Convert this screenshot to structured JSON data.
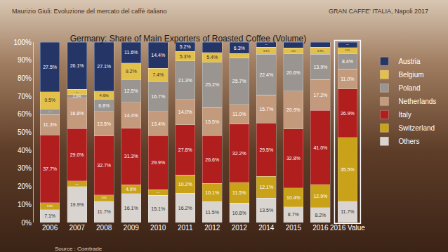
{
  "chart_data": {
    "type": "bar",
    "stacked": true,
    "title": "Germany: Share of Main Exporters of Roasted Coffee (Volume)",
    "header_left": "Maurizio Giuli: Evoluzione del mercato del caffè italiano",
    "header_right": "GRAN CAFFE' ITALIA, Napoli 2017",
    "source": "Source : Comtrade",
    "categories": [
      "2006",
      "2007",
      "2008",
      "2009",
      "2010",
      "2011",
      "2012",
      "2012",
      "2014",
      "2015",
      "2016",
      "2016 Value"
    ],
    "ylim": [
      0,
      100
    ],
    "yticks": [
      {
        "value": 0,
        "label": "0%"
      },
      {
        "value": 10,
        "label": "10%"
      },
      {
        "value": 20,
        "label": "20%"
      },
      {
        "value": 30,
        "label": "30%"
      },
      {
        "value": 40,
        "label": "40%"
      },
      {
        "value": 50,
        "label": "50%"
      },
      {
        "value": 60,
        "label": "60%"
      },
      {
        "value": 70,
        "label": "70%"
      },
      {
        "value": 80,
        "label": "80%"
      },
      {
        "value": 90,
        "label": "90%"
      },
      {
        "value": 100,
        "label": "100%"
      }
    ],
    "grid": false,
    "legend": "right",
    "data_labels": true,
    "series": [
      {
        "name": "Others",
        "color": "#d9d4cf",
        "values": [
          7.1,
          19.9,
          11.7,
          16.1,
          15.1,
          16.2,
          11.5,
          10.8,
          13.5,
          8.7,
          8.2,
          11.7
        ],
        "value_labels": [
          "7.1%",
          "19.9%",
          "11.7%",
          "16.1%",
          "15.1%",
          "16.2%",
          "11.5%",
          "10.8%",
          "13.5%",
          "8.7%",
          "8.2%",
          "11.7%"
        ]
      },
      {
        "name": "Switzerland",
        "color": "#c9a21a",
        "values": [
          3.8,
          3.2,
          3.6,
          4.9,
          3.1,
          10.2,
          10.1,
          11.5,
          12.1,
          10.4,
          12.9,
          35.5
        ],
        "value_labels": [
          "3.8%",
          "3.2%",
          "3.6%",
          "4.9%",
          "3.1%",
          "10.2%",
          "10.1%",
          "11.5%",
          "12.1%",
          "10.4%",
          "12.9%",
          "35.5%"
        ]
      },
      {
        "name": "Italy",
        "color": "#b01e1e",
        "values": [
          37.7,
          29.0,
          32.7,
          31.3,
          29.9,
          27.8,
          26.6,
          32.2,
          29.5,
          32.8,
          41.0,
          26.9
        ],
        "value_labels": [
          "37.7%",
          "29.0%",
          "32.7%",
          "31.3%",
          "29.9%",
          "27.8%",
          "26.6%",
          "32.2%",
          "29.5%",
          "32.8%",
          "41.0%",
          "26.9%"
        ]
      },
      {
        "name": "Netherlands",
        "color": "#c49a7c",
        "values": [
          11.3,
          16.8,
          13.5,
          14.4,
          13.4,
          14.0,
          15.5,
          11.0,
          15.7,
          20.9,
          17.2,
          11.0
        ],
        "value_labels": [
          "11.3%",
          "16.8%",
          "13.5%",
          "14.4%",
          "13.4%",
          "14.0%",
          "15.5%",
          "11.0%",
          "15.7%",
          "20.9%",
          "17.2%",
          "11.0%"
        ]
      },
      {
        "name": "Poland",
        "color": "#9a9590",
        "values": [
          3.1,
          2.0,
          6.8,
          12.5,
          16.7,
          21.3,
          25.2,
          25.7,
          22.4,
          20.6,
          13.9,
          8.4
        ],
        "value_labels": [
          "3.1%",
          "2.0%",
          "6.8%",
          "12.5%",
          "16.7%",
          "21.3%",
          "25.2%",
          "25.7%",
          "22.4%",
          "20.6%",
          "13.9%",
          "8.4%"
        ]
      },
      {
        "name": "Belgium",
        "color": "#e3c04a",
        "values": [
          9.5,
          3.0,
          4.6,
          9.2,
          7.4,
          5.3,
          5.4,
          2.5,
          3.9,
          3.4,
          3.9,
          3.5
        ],
        "value_labels": [
          "9.5%",
          "3.0%",
          "4.6%",
          "9.2%",
          "7.4%",
          "5.3%",
          "5.4%",
          "2.5%",
          "3.9%",
          "3.4%",
          "3.9%",
          "3.5%"
        ]
      },
      {
        "name": "Austria",
        "color": "#253566",
        "values": [
          27.5,
          26.1,
          27.1,
          11.6,
          14.4,
          5.2,
          5.7,
          6.3,
          2.9,
          3.2,
          2.9,
          3.0
        ],
        "value_labels": [
          "27.5%",
          "26.1%",
          "27.1%",
          "11.6%",
          "14.4%",
          "5.2%",
          "5.7%",
          "6.3%",
          "2.9%",
          "3.2%",
          "2.9%",
          "3.0%"
        ]
      }
    ]
  }
}
